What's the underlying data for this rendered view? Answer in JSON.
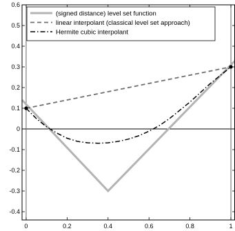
{
  "chart_data": {
    "type": "line",
    "title": "",
    "xlabel": "",
    "ylabel": "",
    "xlim": [
      -0.02,
      1.02
    ],
    "ylim": [
      -0.44,
      0.6
    ],
    "x_ticks": [
      "0",
      "0.2",
      "0.4",
      "0.6",
      "0.8",
      "1"
    ],
    "y_ticks": [
      "0.6",
      "0.5",
      "0.4",
      "0.3",
      "0.2",
      "0.1",
      "0",
      "-0.1",
      "-0.2",
      "-0.3",
      "-0.4"
    ],
    "reference_lines": {
      "horizontal_y": 0,
      "vertical_x": [
        0,
        1
      ]
    },
    "legend_position": "top",
    "series": [
      {
        "name": "(signed distance) level set function",
        "style": "solid",
        "color": "#b3b3b3",
        "x": [
          -0.02,
          0.4,
          1.02
        ],
        "y": [
          0.14,
          -0.3,
          0.33
        ]
      },
      {
        "name": "linear interpolant (classical level set approach)",
        "style": "dashed",
        "color": "#6e6e6e",
        "x": [
          0,
          1
        ],
        "y": [
          0.1,
          0.3
        ]
      },
      {
        "name": "Hermite cubic interpolant",
        "style": "dashdot",
        "color": "#000000",
        "x": [
          0,
          0.05,
          0.1,
          0.15,
          0.2,
          0.25,
          0.3,
          0.35,
          0.4,
          0.45,
          0.5,
          0.55,
          0.6,
          0.65,
          0.7,
          0.75,
          0.8,
          0.85,
          0.9,
          0.95,
          1
        ],
        "y": [
          0.1,
          0.05,
          0.01,
          -0.02,
          -0.045,
          -0.06,
          -0.067,
          -0.069,
          -0.067,
          -0.06,
          -0.049,
          -0.033,
          -0.011,
          0.016,
          0.05,
          0.09,
          0.13,
          0.175,
          0.22,
          0.26,
          0.3
        ]
      }
    ],
    "markers": [
      {
        "x": 0,
        "y": 0.1
      },
      {
        "x": 1,
        "y": 0.3
      }
    ]
  }
}
